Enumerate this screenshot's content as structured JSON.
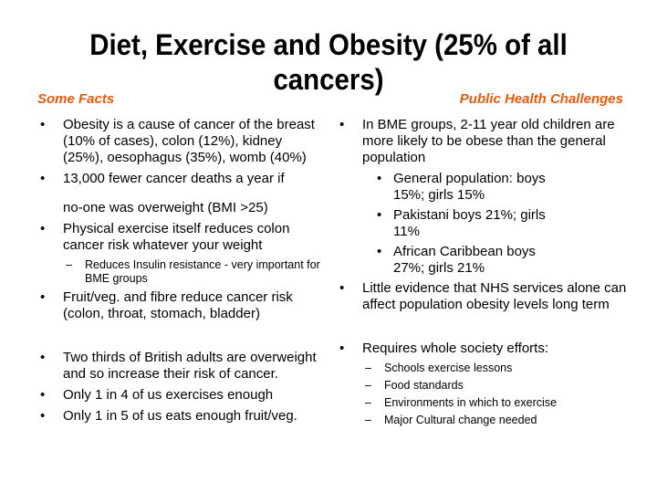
{
  "slide": {
    "title": "Diet, Exercise and Obesity (25% of all cancers)"
  },
  "left": {
    "heading": "Some Facts",
    "bullets": [
      "Obesity is a cause of cancer of the breast (10% of cases), colon (12%), kidney (25%), oesophagus (35%), womb (40%)",
      "13,000 fewer cancer deaths a year if",
      "no-one was overweight (BMI >25)",
      "Physical exercise itself reduces colon cancer risk whatever your weight",
      "Reduces Insulin resistance -  very important for BME groups",
      "Fruit/veg. and fibre reduce cancer risk (colon, throat, stomach, bladder)",
      "Two thirds of British adults are overweight and so increase their risk of cancer.",
      "Only 1 in 4 of us exercises enough",
      "Only 1 in 5 of us eats enough fruit/veg."
    ]
  },
  "right": {
    "heading": "Public Health Challenges",
    "bullets": [
      "In BME groups,  2-11 year old children are more likely to be obese than the general population",
      "General population: boys 15%; girls 15%",
      "Pakistani boys 21%; girls 11%",
      "African Caribbean boys 27%; girls 21%",
      "Little evidence that NHS services alone can affect population obesity levels long term",
      "Requires whole society efforts:",
      "Schools exercise lessons",
      "Food standards",
      "Environments in which to exercise",
      "Major Cultural change needed"
    ]
  }
}
